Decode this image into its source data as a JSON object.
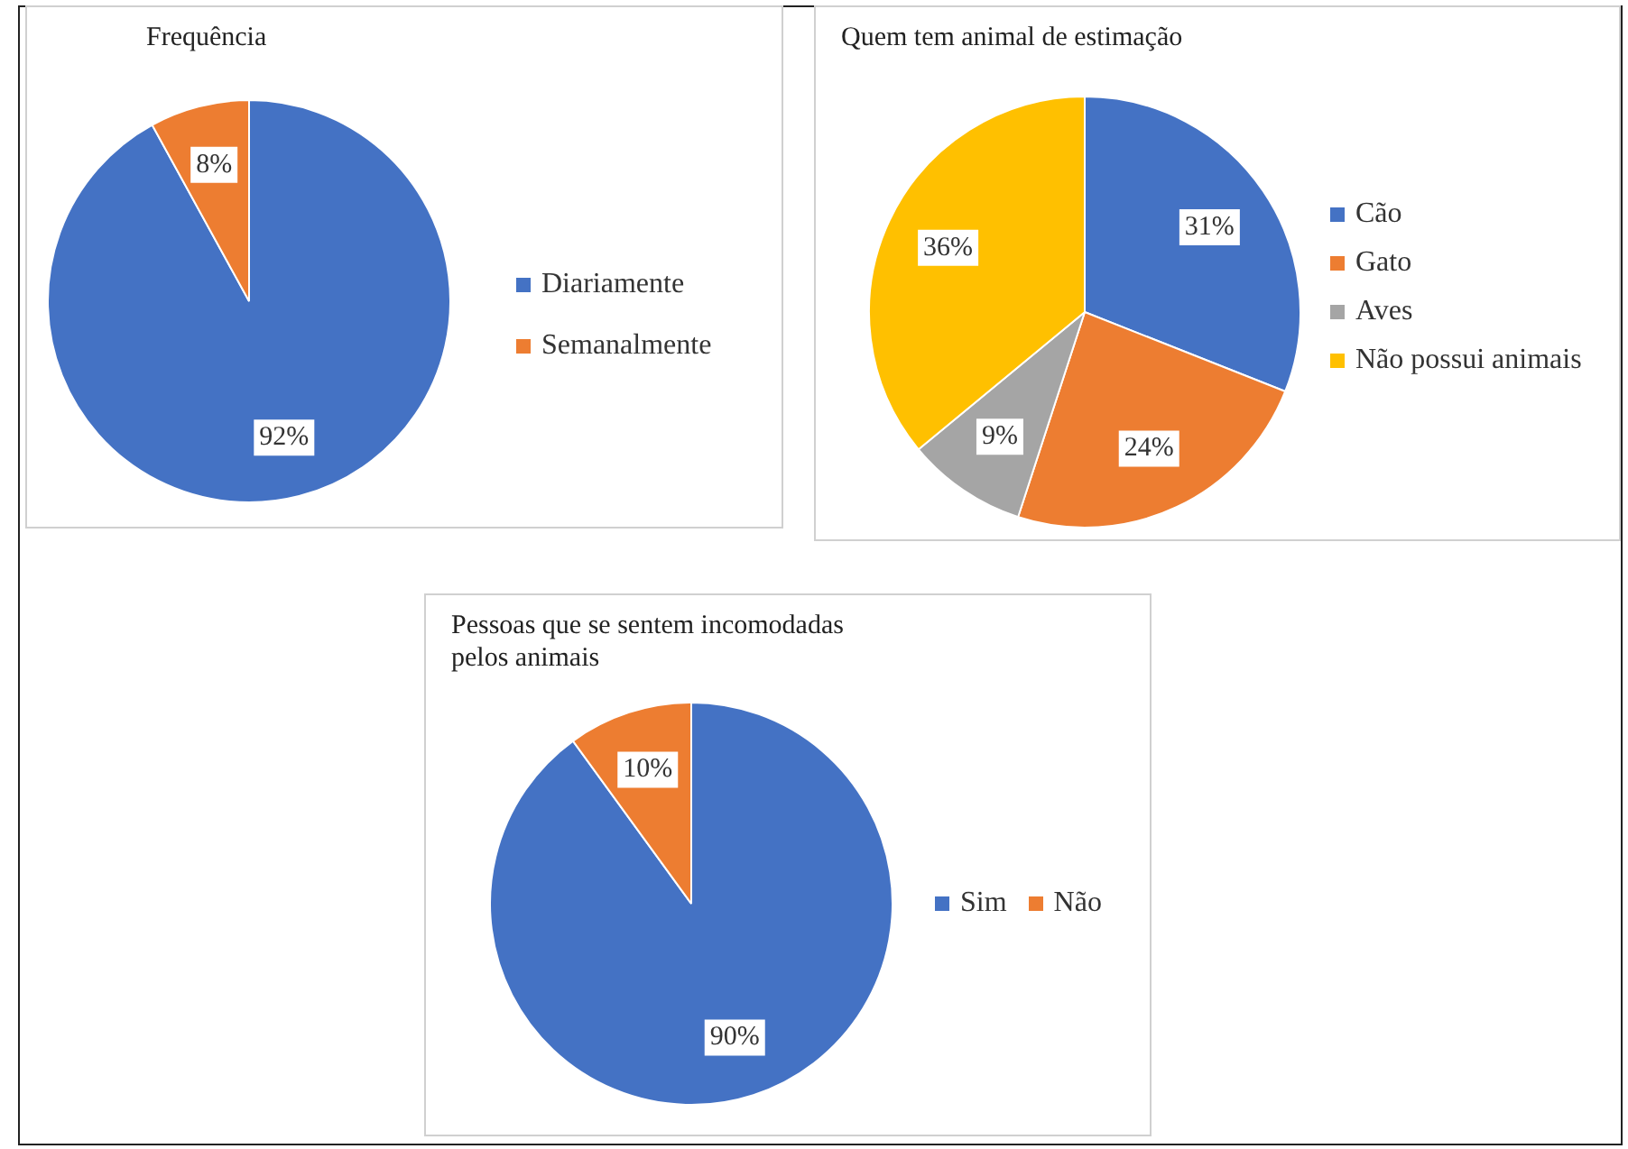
{
  "chart_data": [
    {
      "type": "pie",
      "title": "Frequência",
      "categories": [
        "Diariamente",
        "Semanalmente"
      ],
      "values": [
        92,
        8
      ],
      "colors": [
        "#4472c4",
        "#ed7d31"
      ],
      "value_labels": [
        "92%",
        "8%"
      ],
      "legend": "right"
    },
    {
      "type": "pie",
      "title": "Quem tem animal de estimação",
      "categories": [
        "Cão",
        "Gato",
        "Aves",
        "Não possui animais"
      ],
      "values": [
        31,
        24,
        9,
        36
      ],
      "colors": [
        "#4472c4",
        "#ed7d31",
        "#a5a5a5",
        "#ffc000"
      ],
      "value_labels": [
        "31%",
        "24%",
        "9%",
        "36%"
      ],
      "legend": "right"
    },
    {
      "type": "pie",
      "title": "Pessoas que se sentem incomodadas pelos animais",
      "categories": [
        "Sim",
        "Não"
      ],
      "values": [
        90,
        10
      ],
      "colors": [
        "#4472c4",
        "#ed7d31"
      ],
      "value_labels": [
        "90%",
        "10%"
      ],
      "legend": "right"
    }
  ]
}
